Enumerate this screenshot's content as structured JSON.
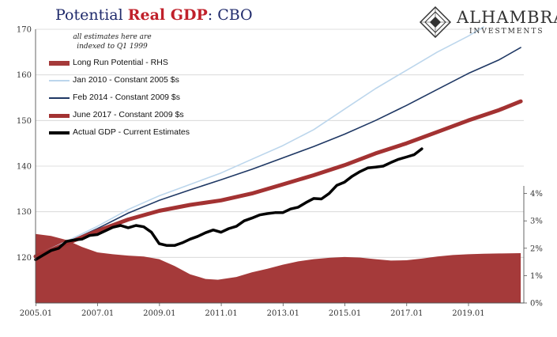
{
  "title": {
    "prefix": "Potential ",
    "highlight": "Real GDP",
    "suffix": ":  CBO"
  },
  "note": {
    "line1": "all estimates here are",
    "line2": "indexed to Q1 1999"
  },
  "logo": {
    "name": "ALHAMBRA",
    "sub": "INVESTMENTS"
  },
  "colors": {
    "title": "#1f2a6b",
    "highlight": "#c0202a",
    "rhs_area": "#a53a3a",
    "jan2010": "#bcd6ec",
    "feb2014": "#1f3864",
    "jun2017": "#a33232",
    "actual": "#000000",
    "logo": "#333333"
  },
  "chart_data": {
    "type": "line",
    "x_ticks": [
      "2005.01",
      "2007.01",
      "2009.01",
      "2011.01",
      "2013.01",
      "2015.01",
      "2017.01",
      "2019.01"
    ],
    "x_range": [
      2005.0,
      2020.8
    ],
    "y_left": {
      "range": [
        110,
        170
      ],
      "ticks": [
        "120",
        "130",
        "140",
        "150",
        "160",
        "170"
      ]
    },
    "y_right": {
      "range": [
        0,
        10
      ],
      "ticks": [
        "0%",
        "1%",
        "2%",
        "3%",
        "4%"
      ]
    },
    "series": [
      {
        "name": "Long Run Potential - RHS",
        "kind": "area",
        "axis": "right",
        "color": "#a53a3a",
        "points": [
          [
            2005.0,
            2.52
          ],
          [
            2005.5,
            2.45
          ],
          [
            2006.0,
            2.3
          ],
          [
            2006.5,
            2.05
          ],
          [
            2007.0,
            1.85
          ],
          [
            2007.5,
            1.78
          ],
          [
            2008.0,
            1.73
          ],
          [
            2008.5,
            1.7
          ],
          [
            2009.0,
            1.6
          ],
          [
            2009.5,
            1.35
          ],
          [
            2010.0,
            1.05
          ],
          [
            2010.5,
            0.88
          ],
          [
            2010.9,
            0.85
          ],
          [
            2011.5,
            0.95
          ],
          [
            2012.0,
            1.12
          ],
          [
            2012.5,
            1.25
          ],
          [
            2013.0,
            1.4
          ],
          [
            2013.5,
            1.52
          ],
          [
            2014.0,
            1.6
          ],
          [
            2014.5,
            1.65
          ],
          [
            2015.0,
            1.68
          ],
          [
            2015.5,
            1.66
          ],
          [
            2016.0,
            1.6
          ],
          [
            2016.5,
            1.55
          ],
          [
            2017.0,
            1.56
          ],
          [
            2017.5,
            1.62
          ],
          [
            2018.0,
            1.7
          ],
          [
            2018.5,
            1.75
          ],
          [
            2019.0,
            1.78
          ],
          [
            2019.5,
            1.8
          ],
          [
            2020.0,
            1.81
          ],
          [
            2020.7,
            1.82
          ]
        ]
      },
      {
        "name": "Jan 2010 - Constant 2005 $s",
        "kind": "line",
        "axis": "left",
        "color": "#bcd6ec",
        "width": 1.6,
        "points": [
          [
            2005.0,
            120.4
          ],
          [
            2006.0,
            123.5
          ],
          [
            2007.0,
            126.8
          ],
          [
            2008.0,
            130.5
          ],
          [
            2009.0,
            133.5
          ],
          [
            2010.0,
            136.0
          ],
          [
            2011.0,
            138.5
          ],
          [
            2012.0,
            141.5
          ],
          [
            2013.0,
            144.5
          ],
          [
            2014.0,
            148.0
          ],
          [
            2015.0,
            152.5
          ],
          [
            2016.0,
            157.0
          ],
          [
            2017.0,
            161.0
          ],
          [
            2018.0,
            165.0
          ],
          [
            2019.0,
            168.5
          ],
          [
            2019.5,
            170.5
          ]
        ]
      },
      {
        "name": "Feb 2014 - Constant 2009 $s",
        "kind": "line",
        "axis": "left",
        "color": "#1f3864",
        "width": 1.6,
        "points": [
          [
            2005.0,
            120.3
          ],
          [
            2006.0,
            123.2
          ],
          [
            2007.0,
            126.3
          ],
          [
            2008.0,
            129.7
          ],
          [
            2009.0,
            132.5
          ],
          [
            2010.0,
            134.8
          ],
          [
            2011.0,
            137.0
          ],
          [
            2012.0,
            139.3
          ],
          [
            2013.0,
            141.8
          ],
          [
            2014.0,
            144.3
          ],
          [
            2015.0,
            147.0
          ],
          [
            2016.0,
            150.0
          ],
          [
            2017.0,
            153.3
          ],
          [
            2018.0,
            156.8
          ],
          [
            2019.0,
            160.3
          ],
          [
            2020.0,
            163.3
          ],
          [
            2020.7,
            166.0
          ]
        ]
      },
      {
        "name": "June 2017 - Constant 2009 $s",
        "kind": "line",
        "axis": "left",
        "color": "#a33232",
        "width": 5,
        "points": [
          [
            2005.0,
            120.2
          ],
          [
            2006.0,
            123.0
          ],
          [
            2007.0,
            125.8
          ],
          [
            2008.0,
            128.3
          ],
          [
            2009.0,
            130.2
          ],
          [
            2010.0,
            131.5
          ],
          [
            2011.0,
            132.5
          ],
          [
            2012.0,
            134.0
          ],
          [
            2013.0,
            136.0
          ],
          [
            2014.0,
            138.0
          ],
          [
            2015.0,
            140.2
          ],
          [
            2016.0,
            142.8
          ],
          [
            2017.0,
            145.0
          ],
          [
            2018.0,
            147.5
          ],
          [
            2019.0,
            150.0
          ],
          [
            2020.0,
            152.3
          ],
          [
            2020.7,
            154.2
          ]
        ]
      },
      {
        "name": "Actual GDP - Current Estimates",
        "kind": "line",
        "axis": "left",
        "color": "#000000",
        "width": 3.5,
        "points": [
          [
            2005.0,
            119.5
          ],
          [
            2005.25,
            120.5
          ],
          [
            2005.5,
            121.5
          ],
          [
            2005.75,
            122.0
          ],
          [
            2006.0,
            123.5
          ],
          [
            2006.25,
            123.8
          ],
          [
            2006.5,
            124.0
          ],
          [
            2006.75,
            124.8
          ],
          [
            2007.0,
            125.0
          ],
          [
            2007.25,
            125.8
          ],
          [
            2007.5,
            126.6
          ],
          [
            2007.75,
            127.0
          ],
          [
            2008.0,
            126.5
          ],
          [
            2008.25,
            127.0
          ],
          [
            2008.5,
            126.7
          ],
          [
            2008.75,
            125.5
          ],
          [
            2009.0,
            123.0
          ],
          [
            2009.25,
            122.6
          ],
          [
            2009.5,
            122.6
          ],
          [
            2009.75,
            123.2
          ],
          [
            2010.0,
            124.0
          ],
          [
            2010.25,
            124.6
          ],
          [
            2010.5,
            125.4
          ],
          [
            2010.75,
            126.0
          ],
          [
            2011.0,
            125.5
          ],
          [
            2011.25,
            126.3
          ],
          [
            2011.5,
            126.8
          ],
          [
            2011.75,
            128.0
          ],
          [
            2012.0,
            128.6
          ],
          [
            2012.25,
            129.3
          ],
          [
            2012.5,
            129.6
          ],
          [
            2012.75,
            129.8
          ],
          [
            2013.0,
            129.8
          ],
          [
            2013.25,
            130.6
          ],
          [
            2013.5,
            131.0
          ],
          [
            2013.75,
            132.0
          ],
          [
            2014.0,
            132.9
          ],
          [
            2014.25,
            132.8
          ],
          [
            2014.5,
            134.0
          ],
          [
            2014.75,
            135.8
          ],
          [
            2015.0,
            136.5
          ],
          [
            2015.25,
            137.8
          ],
          [
            2015.5,
            138.8
          ],
          [
            2015.75,
            139.6
          ],
          [
            2016.0,
            139.8
          ],
          [
            2016.25,
            140.0
          ],
          [
            2016.5,
            140.8
          ],
          [
            2016.75,
            141.5
          ],
          [
            2017.0,
            142.0
          ],
          [
            2017.25,
            142.5
          ],
          [
            2017.5,
            143.8
          ]
        ]
      }
    ]
  }
}
